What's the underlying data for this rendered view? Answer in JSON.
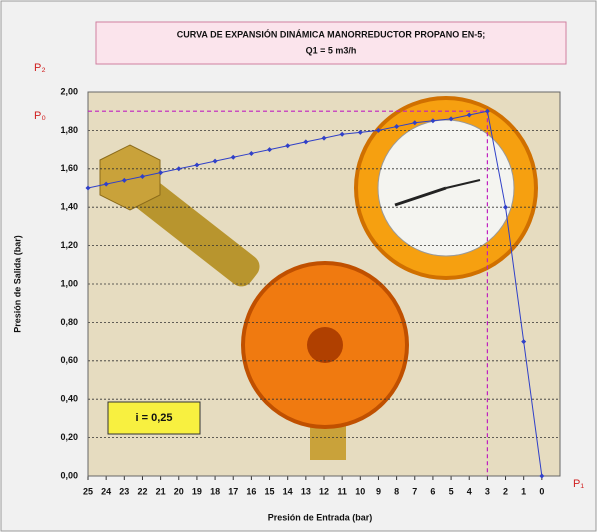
{
  "chart_data": {
    "type": "line",
    "title": [
      "CURVA DE EXPANSIÓN DINÁMICA MANORREDUCTOR PROPANO EN-5;",
      "Q1 = 5 m3/h"
    ],
    "x_label": "Presión de Entrada  (bar)",
    "y_label": "Presión de Salida  (bar)",
    "annotations": [
      "P₂",
      "P₀",
      "P₁",
      "i = 0,25"
    ],
    "x": [
      25,
      24,
      23,
      22,
      21,
      20,
      19,
      18,
      17,
      16,
      15,
      14,
      13,
      12,
      11,
      10,
      9,
      8,
      7,
      6,
      5,
      4,
      3,
      2,
      1,
      0
    ],
    "series": [
      {
        "color": "#3040c8",
        "values": [
          1.5,
          1.52,
          1.54,
          1.56,
          1.58,
          1.6,
          1.62,
          1.64,
          1.66,
          1.68,
          1.7,
          1.72,
          1.74,
          1.76,
          1.78,
          1.79,
          1.8,
          1.82,
          1.84,
          1.85,
          1.86,
          1.88,
          1.9,
          1.4,
          0.7,
          0.0
        ]
      }
    ],
    "reference": {
      "x": 3,
      "y": 1.9,
      "color": "#c020c0"
    },
    "xlim": [
      25,
      -1
    ],
    "xticks": [
      25,
      24,
      23,
      22,
      21,
      20,
      19,
      18,
      17,
      16,
      15,
      14,
      13,
      12,
      11,
      10,
      9,
      8,
      7,
      6,
      5,
      4,
      3,
      2,
      1,
      0
    ],
    "ylim": [
      0,
      2
    ],
    "yticks": [
      {
        "value": 0,
        "label": "0,00"
      },
      {
        "value": 0.2,
        "label": "0,20"
      },
      {
        "value": 0.4,
        "label": "0,40"
      },
      {
        "value": 0.6,
        "label": "0,60"
      },
      {
        "value": 0.8,
        "label": "0,80"
      },
      {
        "value": 1,
        "label": "1,00"
      },
      {
        "value": 1.2,
        "label": "1,20"
      },
      {
        "value": 1.4,
        "label": "1,40"
      },
      {
        "value": 1.6,
        "label": "1,60"
      },
      {
        "value": 1.8,
        "label": "1,80"
      },
      {
        "value": 2,
        "label": "2,00"
      }
    ],
    "grid": true
  }
}
